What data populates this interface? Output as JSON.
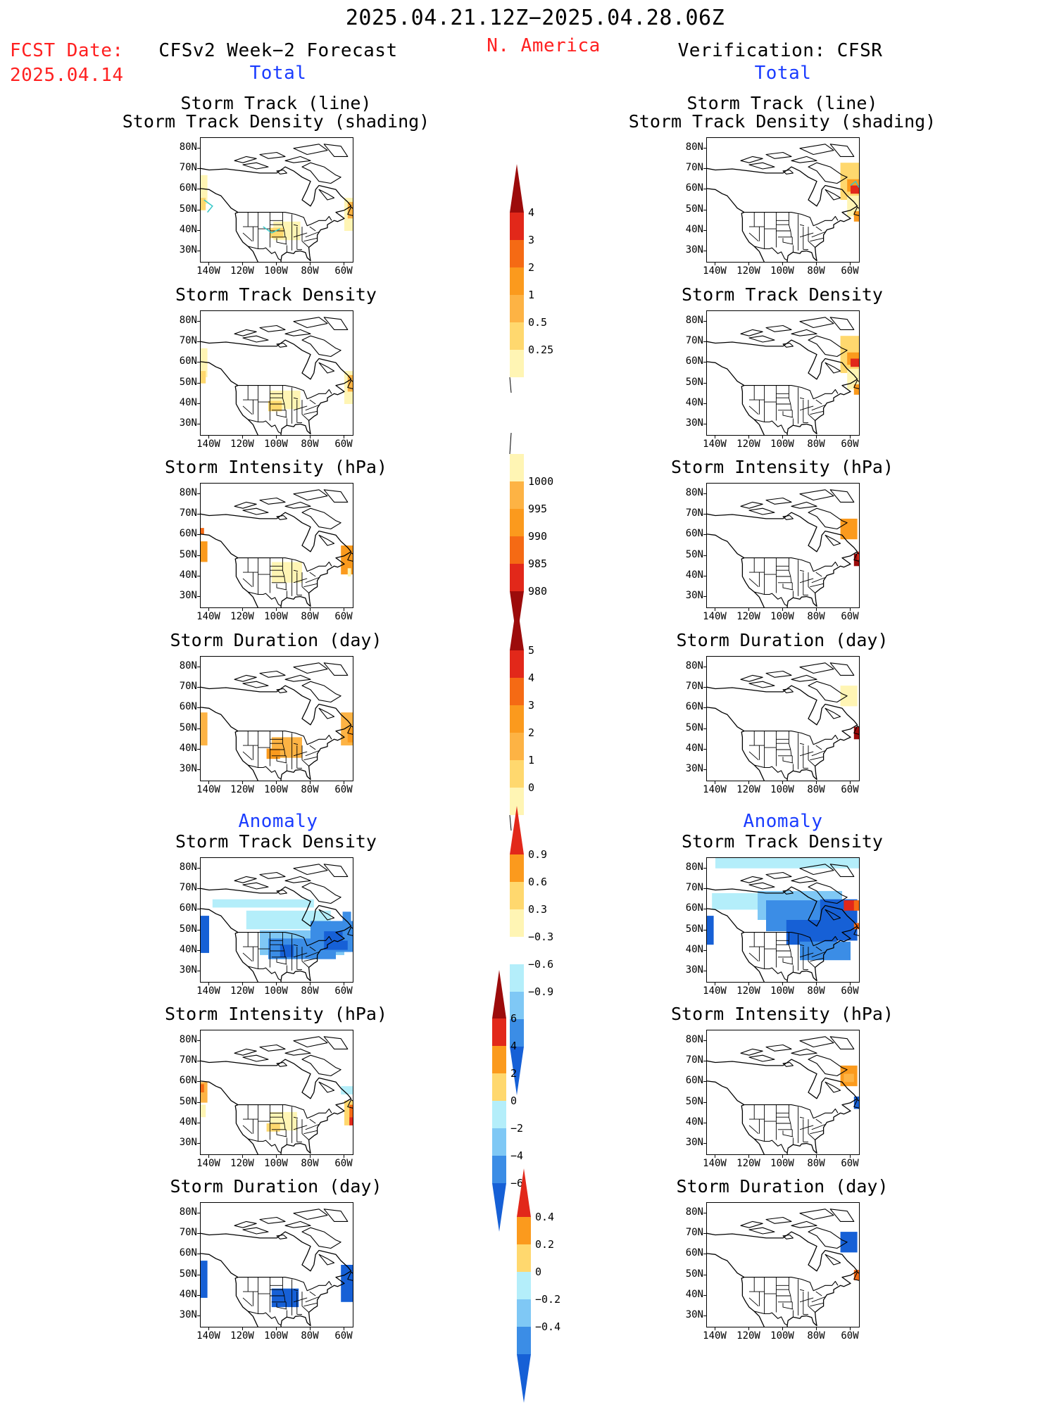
{
  "header": {
    "period": "2025.04.21.12Z−2025.04.28.06Z",
    "fcst_label": "FCST Date:",
    "fcst_date": "2025.04.14",
    "model": "CFSv2 Week−2 Forecast",
    "region": "N. America",
    "verification": "Verification: CFSR"
  },
  "sections": {
    "total": "Total",
    "anomaly": "Anomaly"
  },
  "axes": {
    "lat_ticks": [
      "80N",
      "70N",
      "60N",
      "50N",
      "40N",
      "30N"
    ],
    "lon_ticks": [
      "140W",
      "120W",
      "100W",
      "80W",
      "60W"
    ]
  },
  "colors": {
    "pale_yellow": "#fff5b4",
    "yellow": "#ffd86e",
    "light_orange": "#fdb344",
    "orange": "#fb9a1d",
    "dark_orange": "#f56a14",
    "red": "#e2281a",
    "dark_red": "#9c0b0b",
    "light_cyan": "#b4eefa",
    "light_blue": "#7fc8f5",
    "blue": "#3b8de6",
    "dark_blue": "#1660d6"
  },
  "panels": [
    {
      "id": "fcst-total-track",
      "title1": "Storm Track (line)",
      "title2": "Storm Track Density (shading)"
    },
    {
      "id": "fcst-total-density",
      "title1": "Storm Track Density"
    },
    {
      "id": "fcst-total-intensity",
      "title1": "Storm Intensity (hPa)"
    },
    {
      "id": "fcst-total-duration",
      "title1": "Storm Duration (day)"
    },
    {
      "id": "fcst-anom-density",
      "title1": "Storm Track Density"
    },
    {
      "id": "fcst-anom-intensity",
      "title1": "Storm Intensity (hPa)"
    },
    {
      "id": "fcst-anom-duration",
      "title1": "Storm Duration (day)"
    },
    {
      "id": "ver-total-track",
      "title1": "Storm Track (line)",
      "title2": "Storm Track Density (shading)"
    },
    {
      "id": "ver-total-density",
      "title1": "Storm Track Density"
    },
    {
      "id": "ver-total-intensity",
      "title1": "Storm Intensity (hPa)"
    },
    {
      "id": "ver-total-duration",
      "title1": "Storm Duration (day)"
    },
    {
      "id": "ver-anom-density",
      "title1": "Storm Track Density"
    },
    {
      "id": "ver-anom-intensity",
      "title1": "Storm Intensity (hPa)"
    },
    {
      "id": "ver-anom-duration",
      "title1": "Storm Duration (day)"
    }
  ],
  "colorbars": [
    {
      "id": "cb-density",
      "labels": [
        "4",
        "3",
        "2",
        "1",
        "0.5",
        "0.25"
      ]
    },
    {
      "id": "cb-intensity",
      "labels": [
        "1000",
        "995",
        "990",
        "985",
        "980"
      ]
    },
    {
      "id": "cb-duration",
      "labels": [
        "5",
        "4",
        "3",
        "2",
        "1",
        "0"
      ]
    },
    {
      "id": "cb-anom-density",
      "labels": [
        "0.9",
        "0.6",
        "0.3",
        "−0.3",
        "−0.6",
        "−0.9"
      ]
    },
    {
      "id": "cb-anom-intensity",
      "labels": [
        "6",
        "4",
        "2",
        "0",
        "−2",
        "−4",
        "−6"
      ]
    },
    {
      "id": "cb-anom-duration",
      "labels": [
        "0.4",
        "0.2",
        "0",
        "−0.2",
        "−0.4"
      ]
    }
  ]
}
